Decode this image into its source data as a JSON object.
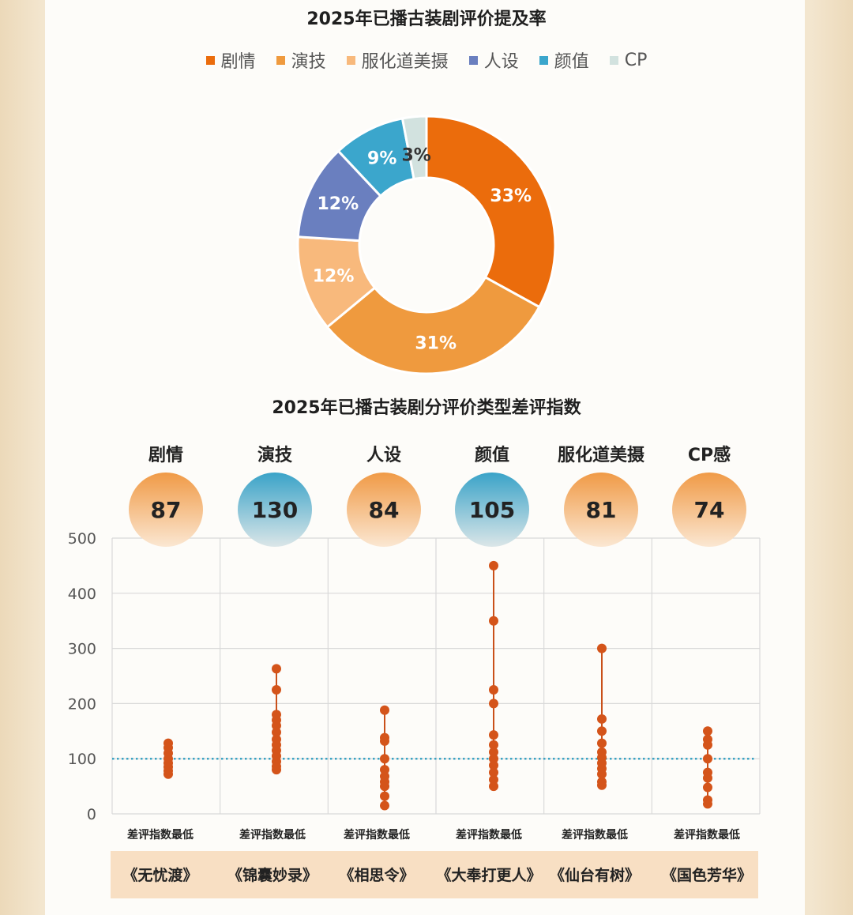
{
  "donut": {
    "title": "2025年已播古装剧评价提及率",
    "slices": [
      {
        "name": "剧情",
        "value": 33,
        "label": "33%",
        "color": "#eb6c0c",
        "label_color": "#ffffff"
      },
      {
        "name": "演技",
        "value": 31,
        "label": "31%",
        "color": "#ef9a3e",
        "label_color": "#ffffff"
      },
      {
        "name": "服化道美摄",
        "value": 12,
        "label": "12%",
        "color": "#f8b97c",
        "label_color": "#ffffff"
      },
      {
        "name": "人设",
        "value": 12,
        "label": "12%",
        "color": "#6a7fbf",
        "label_color": "#ffffff"
      },
      {
        "name": "颜值",
        "value": 9,
        "label": "9%",
        "color": "#3ba6cc",
        "label_color": "#ffffff"
      },
      {
        "name": "CP",
        "value": 3,
        "label": "3%",
        "color": "#d2e2df",
        "label_color": "#333333"
      }
    ]
  },
  "chart_data": [
    {
      "type": "pie",
      "title": "2025年已播古装剧评价提及率",
      "categories": [
        "剧情",
        "演技",
        "服化道美摄",
        "人设",
        "颜值",
        "CP"
      ],
      "values": [
        33,
        31,
        12,
        12,
        9,
        3
      ],
      "legend": "top"
    },
    {
      "type": "scatter",
      "title": "2025年已播古装剧分评价类型差评指数",
      "categories": [
        "剧情",
        "演技",
        "人设",
        "颜值",
        "服化道美摄",
        "CP感"
      ],
      "ylim": [
        0,
        500
      ],
      "yticks": [
        0,
        100,
        200,
        300,
        400,
        500
      ],
      "reference_line": 100,
      "headline_values": [
        87,
        130,
        84,
        105,
        81,
        74
      ],
      "headline_colors": [
        "orange",
        "blue",
        "orange",
        "blue",
        "orange",
        "orange"
      ],
      "series": [
        {
          "category": "剧情",
          "points": [
            72,
            78,
            85,
            92,
            100,
            110,
            120,
            128
          ]
        },
        {
          "category": "演技",
          "points": [
            80,
            86,
            95,
            105,
            115,
            125,
            135,
            148,
            160,
            170,
            180,
            225,
            263
          ]
        },
        {
          "category": "人设",
          "points": [
            15,
            32,
            50,
            58,
            68,
            80,
            100,
            132,
            138,
            188
          ]
        },
        {
          "category": "颜值",
          "points": [
            50,
            62,
            75,
            88,
            100,
            112,
            125,
            143,
            200,
            225,
            350,
            450
          ]
        },
        {
          "category": "服化道美摄",
          "points": [
            52,
            58,
            72,
            82,
            92,
            102,
            112,
            128,
            150,
            172,
            300
          ]
        },
        {
          "category": "CP感",
          "points": [
            18,
            25,
            48,
            65,
            75,
            100,
            125,
            135,
            150
          ]
        }
      ],
      "xlabels": [
        "差评指数最低",
        "差评指数最低",
        "差评指数最低",
        "差评指数最低",
        "差评指数最低",
        "差评指数最低"
      ],
      "dramas": [
        "《无忧渡》",
        "《锦囊妙录》",
        "《相思令》",
        "《大奉打更人》",
        "《仙台有树》",
        "《国色芳华》"
      ]
    }
  ],
  "bottom": {
    "title": "2025年已播古装剧分评价类型差评指数"
  }
}
